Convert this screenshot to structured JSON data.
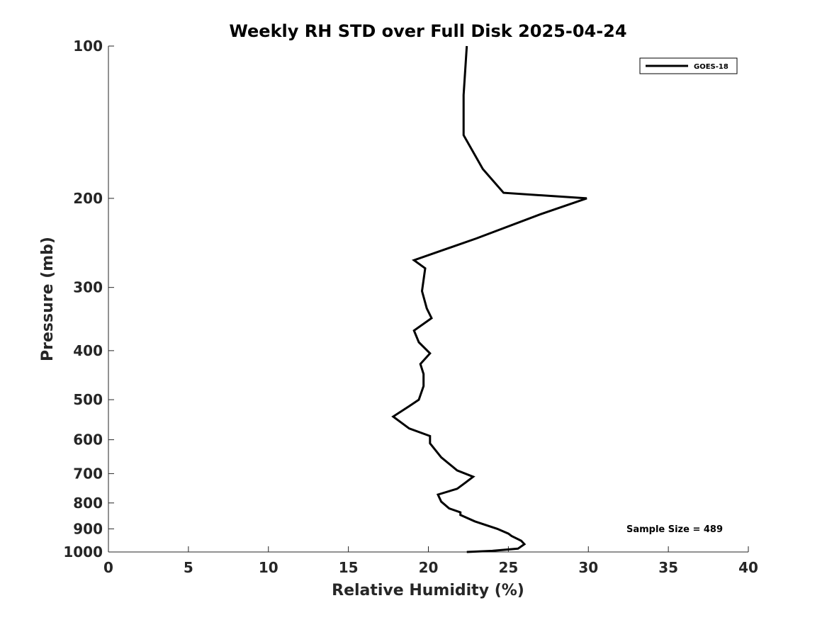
{
  "chart_data": {
    "type": "line",
    "title": "Weekly RH STD over Full Disk 2025-04-24",
    "xlabel": "Relative Humidity (%)",
    "ylabel": "Pressure (mb)",
    "xlim": [
      0,
      40
    ],
    "ylim": [
      1000,
      100
    ],
    "y_scale": "log",
    "y_reversed": true,
    "x_ticks": [
      "0",
      "5",
      "10",
      "15",
      "20",
      "25",
      "30",
      "35",
      "40"
    ],
    "y_ticks": [
      "100",
      "200",
      "300",
      "400",
      "500",
      "600",
      "700",
      "800",
      "900",
      "1000"
    ],
    "grid": false,
    "legend": {
      "position": "top-right",
      "entries": [
        "GOES-18"
      ]
    },
    "annotation": "Sample Size = 489",
    "series": [
      {
        "name": "GOES-18",
        "color": "#000000",
        "points": [
          [
            22.4,
            100
          ],
          [
            22.2,
            125
          ],
          [
            22.2,
            150
          ],
          [
            23.4,
            175
          ],
          [
            24.7,
            195
          ],
          [
            29.9,
            200
          ],
          [
            27.0,
            215
          ],
          [
            23.0,
            240
          ],
          [
            19.1,
            265
          ],
          [
            19.8,
            275
          ],
          [
            19.6,
            305
          ],
          [
            19.9,
            330
          ],
          [
            20.2,
            345
          ],
          [
            19.1,
            365
          ],
          [
            19.4,
            385
          ],
          [
            20.1,
            405
          ],
          [
            19.5,
            425
          ],
          [
            19.7,
            445
          ],
          [
            19.7,
            470
          ],
          [
            19.4,
            500
          ],
          [
            18.8,
            515
          ],
          [
            17.8,
            540
          ],
          [
            18.8,
            570
          ],
          [
            20.1,
            590
          ],
          [
            20.1,
            610
          ],
          [
            20.8,
            650
          ],
          [
            21.8,
            690
          ],
          [
            22.8,
            710
          ],
          [
            22.3,
            730
          ],
          [
            21.8,
            750
          ],
          [
            20.6,
            770
          ],
          [
            20.8,
            795
          ],
          [
            21.3,
            820
          ],
          [
            22.0,
            835
          ],
          [
            22.0,
            845
          ],
          [
            22.9,
            870
          ],
          [
            24.3,
            900
          ],
          [
            25.0,
            920
          ],
          [
            25.2,
            930
          ],
          [
            25.8,
            950
          ],
          [
            26.0,
            965
          ],
          [
            25.6,
            985
          ],
          [
            24.0,
            995
          ],
          [
            22.4,
            1000
          ]
        ]
      }
    ]
  }
}
